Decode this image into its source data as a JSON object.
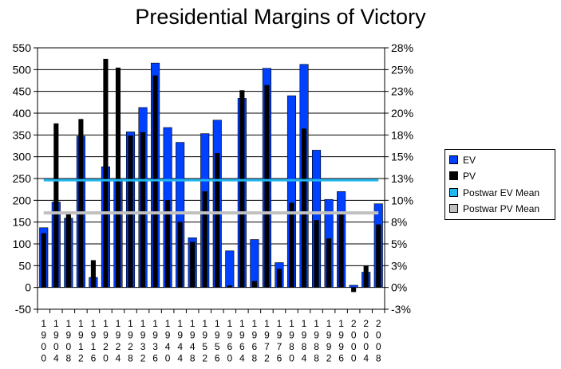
{
  "chart_data": {
    "type": "bar",
    "title": "Presidential Margins of Victory",
    "categories": [
      "1900",
      "1904",
      "1908",
      "1912",
      "1916",
      "1920",
      "1924",
      "1928",
      "1932",
      "1936",
      "1940",
      "1944",
      "1948",
      "1952",
      "1956",
      "1960",
      "1964",
      "1968",
      "1972",
      "1976",
      "1980",
      "1984",
      "1988",
      "1992",
      "1996",
      "2000",
      "2004",
      "2008"
    ],
    "series": [
      {
        "name": "EV",
        "axis": "left",
        "color": "#0040ff",
        "values": [
          137,
          196,
          159,
          347,
          23,
          277,
          246,
          357,
          413,
          515,
          367,
          333,
          114,
          353,
          384,
          84,
          434,
          110,
          503,
          57,
          440,
          512,
          315,
          202,
          220,
          5,
          35,
          192
        ]
      },
      {
        "name": "PV",
        "axis": "right",
        "color": "#000000",
        "values": [
          6.2,
          18.8,
          8.5,
          19.3,
          3.1,
          26.2,
          25.2,
          17.4,
          17.8,
          24.3,
          10.0,
          7.5,
          5.2,
          11.0,
          15.4,
          0.2,
          22.6,
          0.7,
          23.2,
          2.1,
          9.7,
          18.2,
          7.7,
          5.6,
          8.5,
          -0.5,
          2.5,
          7.2
        ]
      },
      {
        "name": "Postwar EV Mean",
        "axis": "left",
        "type": "line",
        "color": "#1fb8f0",
        "value": 246
      },
      {
        "name": "Postwar PV Mean",
        "axis": "left",
        "type": "line",
        "color": "#c0c0c0",
        "value": 171
      }
    ],
    "left_axis": {
      "ylim": [
        -50,
        550
      ],
      "ticks": [
        "-50",
        "0",
        "50",
        "100",
        "150",
        "200",
        "250",
        "300",
        "350",
        "400",
        "450",
        "500",
        "550"
      ]
    },
    "right_axis": {
      "ylim": [
        -2.5,
        27.5
      ],
      "ticks": [
        "-3%",
        "0%",
        "3%",
        "5%",
        "8%",
        "10%",
        "13%",
        "15%",
        "18%",
        "20%",
        "23%",
        "25%",
        "28%"
      ]
    },
    "legend": {
      "position": "right",
      "entries": [
        "EV",
        "PV",
        "Postwar EV Mean",
        "Postwar PV Mean"
      ]
    },
    "grid": true
  }
}
